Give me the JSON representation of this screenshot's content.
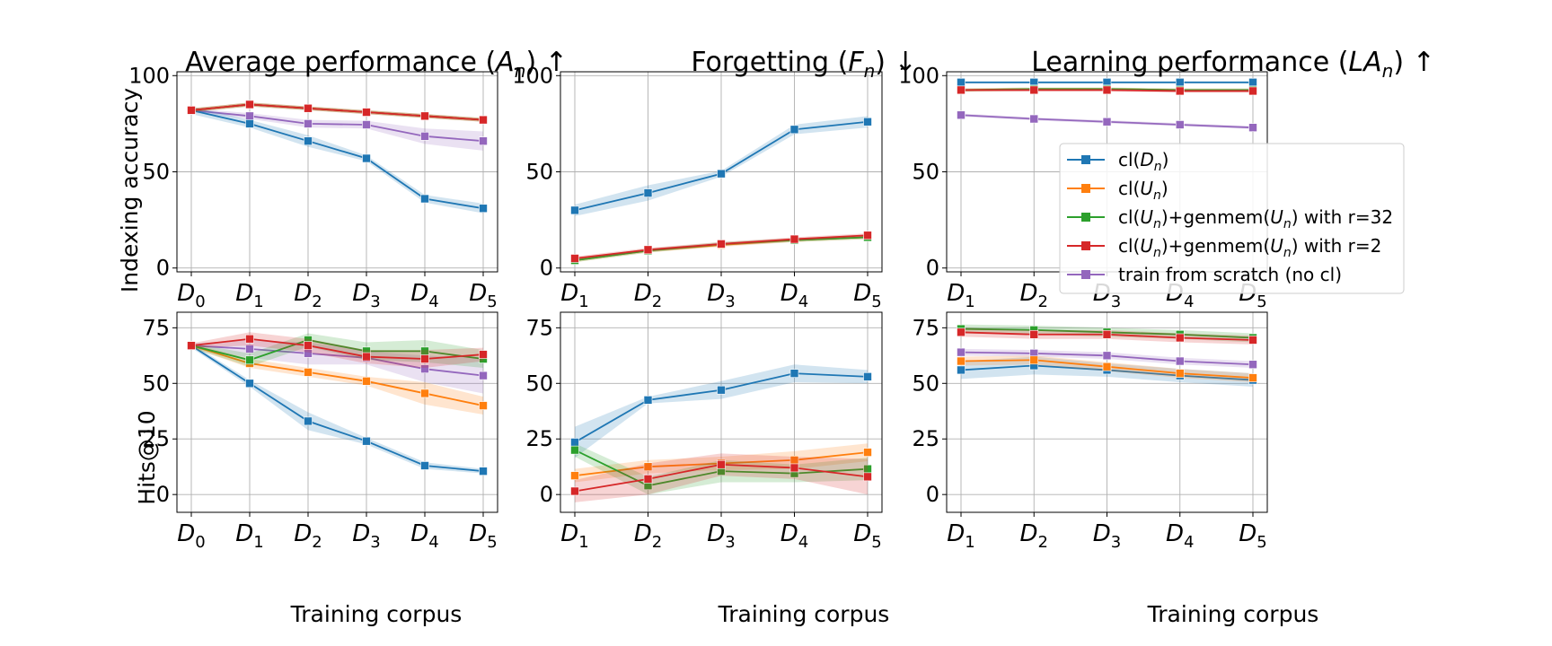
{
  "figure": {
    "row_labels": [
      "Indexing accuracy",
      "Hits@10"
    ],
    "xlabel": "Training corpus",
    "col_titles": [
      {
        "pre": "Average performance (",
        "it": "A",
        "sub": "n",
        "post": ") ↑"
      },
      {
        "pre": "Forgetting (",
        "it": "F",
        "sub": "n",
        "post": ") ↓"
      },
      {
        "pre": "Learning performance (",
        "it": "LA",
        "sub": "n",
        "post": ") ↑"
      }
    ]
  },
  "legend": [
    {
      "name": "cl(D_n)",
      "parts": [
        "cl(",
        "D",
        "n",
        ")"
      ],
      "color": "#1f77b4"
    },
    {
      "name": "cl(U_n)",
      "parts": [
        "cl(",
        "U",
        "n",
        ")"
      ],
      "color": "#ff7f0e"
    },
    {
      "name": "cl(U_n)+genmem(U_n) with r=32",
      "parts": [
        "cl(",
        "U",
        "n",
        ")+genmem(",
        "U",
        "n",
        ") with r=32"
      ],
      "color": "#2ca02c"
    },
    {
      "name": "cl(U_n)+genmem(U_n) with r=2",
      "parts": [
        "cl(",
        "U",
        "n",
        ")+genmem(",
        "U",
        "n",
        ") with r=2"
      ],
      "color": "#d62728"
    },
    {
      "name": "train from scratch (no cl)",
      "parts": [
        "train from scratch (no cl)"
      ],
      "color": "#9467bd"
    }
  ],
  "chart_data": [
    {
      "type": "line",
      "title": "Average performance (A_n) ↑",
      "ylabel": "Indexing accuracy",
      "xlabel": "",
      "categories": [
        "D0",
        "D1",
        "D2",
        "D3",
        "D4",
        "D5"
      ],
      "ylim": [
        -2,
        102
      ],
      "yticks": [
        0,
        50,
        100
      ],
      "grid": true,
      "series": [
        {
          "name": "cl(D_n)",
          "values": [
            82,
            75,
            66,
            57,
            36,
            31
          ],
          "band": [
            2,
            2,
            3,
            1.5,
            2,
            2.5
          ]
        },
        {
          "name": "cl(U_n)",
          "values": [
            82,
            85,
            83,
            81,
            79,
            77
          ],
          "band": [
            1,
            1,
            1,
            1,
            1,
            1
          ]
        },
        {
          "name": "cl(U_n)+genmem(U_n) with r=32",
          "values": [
            82,
            85,
            83,
            81,
            79,
            77
          ],
          "band": [
            1,
            1,
            1,
            1,
            1,
            1
          ]
        },
        {
          "name": "cl(U_n)+genmem(U_n) with r=2",
          "values": [
            82,
            85,
            83,
            81,
            79,
            77
          ],
          "band": [
            1,
            1,
            1,
            1,
            1,
            1
          ]
        },
        {
          "name": "train from scratch (no cl)",
          "values": [
            82,
            79,
            75,
            74.5,
            68.5,
            66
          ],
          "band": [
            1,
            1.5,
            2,
            2,
            4,
            5
          ]
        }
      ]
    },
    {
      "type": "line",
      "title": "Forgetting (F_n) ↓",
      "ylabel": "",
      "xlabel": "",
      "categories": [
        "D1",
        "D2",
        "D3",
        "D4",
        "D5"
      ],
      "ylim": [
        -2,
        102
      ],
      "yticks": [
        0,
        50,
        100
      ],
      "grid": true,
      "series": [
        {
          "name": "cl(D_n)",
          "values": [
            30,
            39,
            49,
            72,
            76
          ],
          "band": [
            3,
            4,
            1.5,
            2.5,
            3
          ]
        },
        {
          "name": "cl(U_n)",
          "values": [
            4,
            9,
            12,
            14.5,
            16
          ],
          "band": [
            1,
            1,
            1,
            1,
            1
          ]
        },
        {
          "name": "cl(U_n)+genmem(U_n) with r=32",
          "values": [
            4,
            9,
            12.5,
            14.5,
            16
          ],
          "band": [
            1,
            1,
            1,
            1,
            1
          ]
        },
        {
          "name": "cl(U_n)+genmem(U_n) with r=2",
          "values": [
            5,
            9.5,
            12.5,
            15,
            17
          ],
          "band": [
            1,
            1,
            1,
            1,
            1
          ]
        }
      ]
    },
    {
      "type": "line",
      "title": "Learning performance (LA_n) ↑",
      "ylabel": "",
      "xlabel": "",
      "categories": [
        "D1",
        "D2",
        "D3",
        "D4",
        "D5"
      ],
      "ylim": [
        -2,
        102
      ],
      "yticks": [
        0,
        50,
        100
      ],
      "grid": true,
      "legend": "center-right",
      "series": [
        {
          "name": "cl(D_n)",
          "values": [
            96.5,
            96.5,
            96.5,
            96.5,
            96.5
          ],
          "band": [
            0.5,
            0.5,
            0.5,
            0.5,
            0.5
          ]
        },
        {
          "name": "cl(U_n)",
          "values": [
            92.5,
            93,
            93,
            92.5,
            92.5
          ],
          "band": [
            0.8,
            0.8,
            0.8,
            0.8,
            0.8
          ]
        },
        {
          "name": "cl(U_n)+genmem(U_n) with r=32",
          "values": [
            92.5,
            93,
            93,
            92.5,
            92.5
          ],
          "band": [
            0.8,
            0.8,
            0.8,
            0.8,
            0.8
          ]
        },
        {
          "name": "cl(U_n)+genmem(U_n) with r=2",
          "values": [
            92.5,
            92.5,
            92.5,
            92,
            92
          ],
          "band": [
            0.8,
            0.8,
            0.8,
            0.8,
            0.8
          ]
        },
        {
          "name": "train from scratch (no cl)",
          "values": [
            79.5,
            77.5,
            76,
            74.5,
            73
          ],
          "band": [
            0.8,
            0.8,
            0.8,
            0.8,
            0.8
          ]
        }
      ]
    },
    {
      "type": "line",
      "title": "",
      "ylabel": "Hits@10",
      "xlabel": "Training corpus",
      "categories": [
        "D0",
        "D1",
        "D2",
        "D3",
        "D4",
        "D5"
      ],
      "ylim": [
        -8,
        82
      ],
      "yticks": [
        0,
        25,
        50,
        75
      ],
      "grid": true,
      "series": [
        {
          "name": "cl(D_n)",
          "values": [
            67,
            50,
            33,
            24,
            13,
            10.5
          ],
          "band": [
            1,
            1.5,
            4,
            1.5,
            1.5,
            1
          ]
        },
        {
          "name": "cl(U_n)",
          "values": [
            67,
            59,
            55,
            51,
            45.5,
            40
          ],
          "band": [
            1,
            2,
            2,
            2,
            5,
            4
          ]
        },
        {
          "name": "cl(U_n)+genmem(U_n) with r=32",
          "values": [
            67,
            60.5,
            69.5,
            64.5,
            64.5,
            61
          ],
          "band": [
            1,
            3,
            3,
            4,
            5,
            4
          ]
        },
        {
          "name": "cl(U_n)+genmem(U_n) with r=2",
          "values": [
            67,
            70,
            67,
            62,
            61,
            63
          ],
          "band": [
            1,
            3,
            3,
            3,
            4,
            3
          ]
        },
        {
          "name": "train from scratch (no cl)",
          "values": [
            67,
            65.5,
            63.5,
            61.5,
            56.5,
            53.5
          ],
          "band": [
            1,
            4,
            5,
            3,
            6,
            8
          ]
        }
      ]
    },
    {
      "type": "line",
      "title": "",
      "ylabel": "",
      "xlabel": "Training corpus",
      "categories": [
        "D1",
        "D2",
        "D3",
        "D4",
        "D5"
      ],
      "ylim": [
        -8,
        82
      ],
      "yticks": [
        0,
        25,
        50,
        75
      ],
      "grid": true,
      "series": [
        {
          "name": "cl(D_n)",
          "values": [
            23.5,
            42.5,
            47,
            54.5,
            53
          ],
          "band": [
            7,
            1.5,
            4,
            4,
            3
          ]
        },
        {
          "name": "cl(U_n)",
          "values": [
            8.5,
            12.5,
            14,
            15.5,
            19
          ],
          "band": [
            3,
            3,
            3,
            4,
            4
          ]
        },
        {
          "name": "cl(U_n)+genmem(U_n) with r=32",
          "values": [
            20,
            4,
            10.5,
            9.5,
            11.5
          ],
          "band": [
            3,
            4,
            5,
            4,
            5
          ]
        },
        {
          "name": "cl(U_n)+genmem(U_n) with r=2",
          "values": [
            1.5,
            7,
            13.5,
            12,
            8
          ],
          "band": [
            5,
            7,
            5,
            5,
            8
          ]
        }
      ]
    },
    {
      "type": "line",
      "title": "",
      "ylabel": "",
      "xlabel": "Training corpus",
      "categories": [
        "D1",
        "D2",
        "D3",
        "D4",
        "D5"
      ],
      "ylim": [
        -8,
        82
      ],
      "yticks": [
        0,
        25,
        50,
        75
      ],
      "grid": true,
      "series": [
        {
          "name": "cl(D_n)",
          "values": [
            56,
            58,
            56,
            53.5,
            51.5
          ],
          "band": [
            4,
            4,
            3,
            3,
            3
          ]
        },
        {
          "name": "cl(U_n)",
          "values": [
            60,
            60.5,
            57.5,
            54.5,
            52.5
          ],
          "band": [
            2,
            2,
            2,
            2,
            2
          ]
        },
        {
          "name": "cl(U_n)+genmem(U_n) with r=32",
          "values": [
            74.5,
            74,
            73,
            72,
            70.5
          ],
          "band": [
            2,
            2,
            2,
            2,
            2
          ]
        },
        {
          "name": "cl(U_n)+genmem(U_n) with r=2",
          "values": [
            73,
            72,
            72,
            70.5,
            69.5
          ],
          "band": [
            2,
            2,
            2,
            2,
            2
          ]
        },
        {
          "name": "train from scratch (no cl)",
          "values": [
            64,
            63.5,
            62.5,
            60,
            58.5
          ],
          "band": [
            1.5,
            1.5,
            1.5,
            1.5,
            1.5
          ]
        }
      ]
    }
  ]
}
